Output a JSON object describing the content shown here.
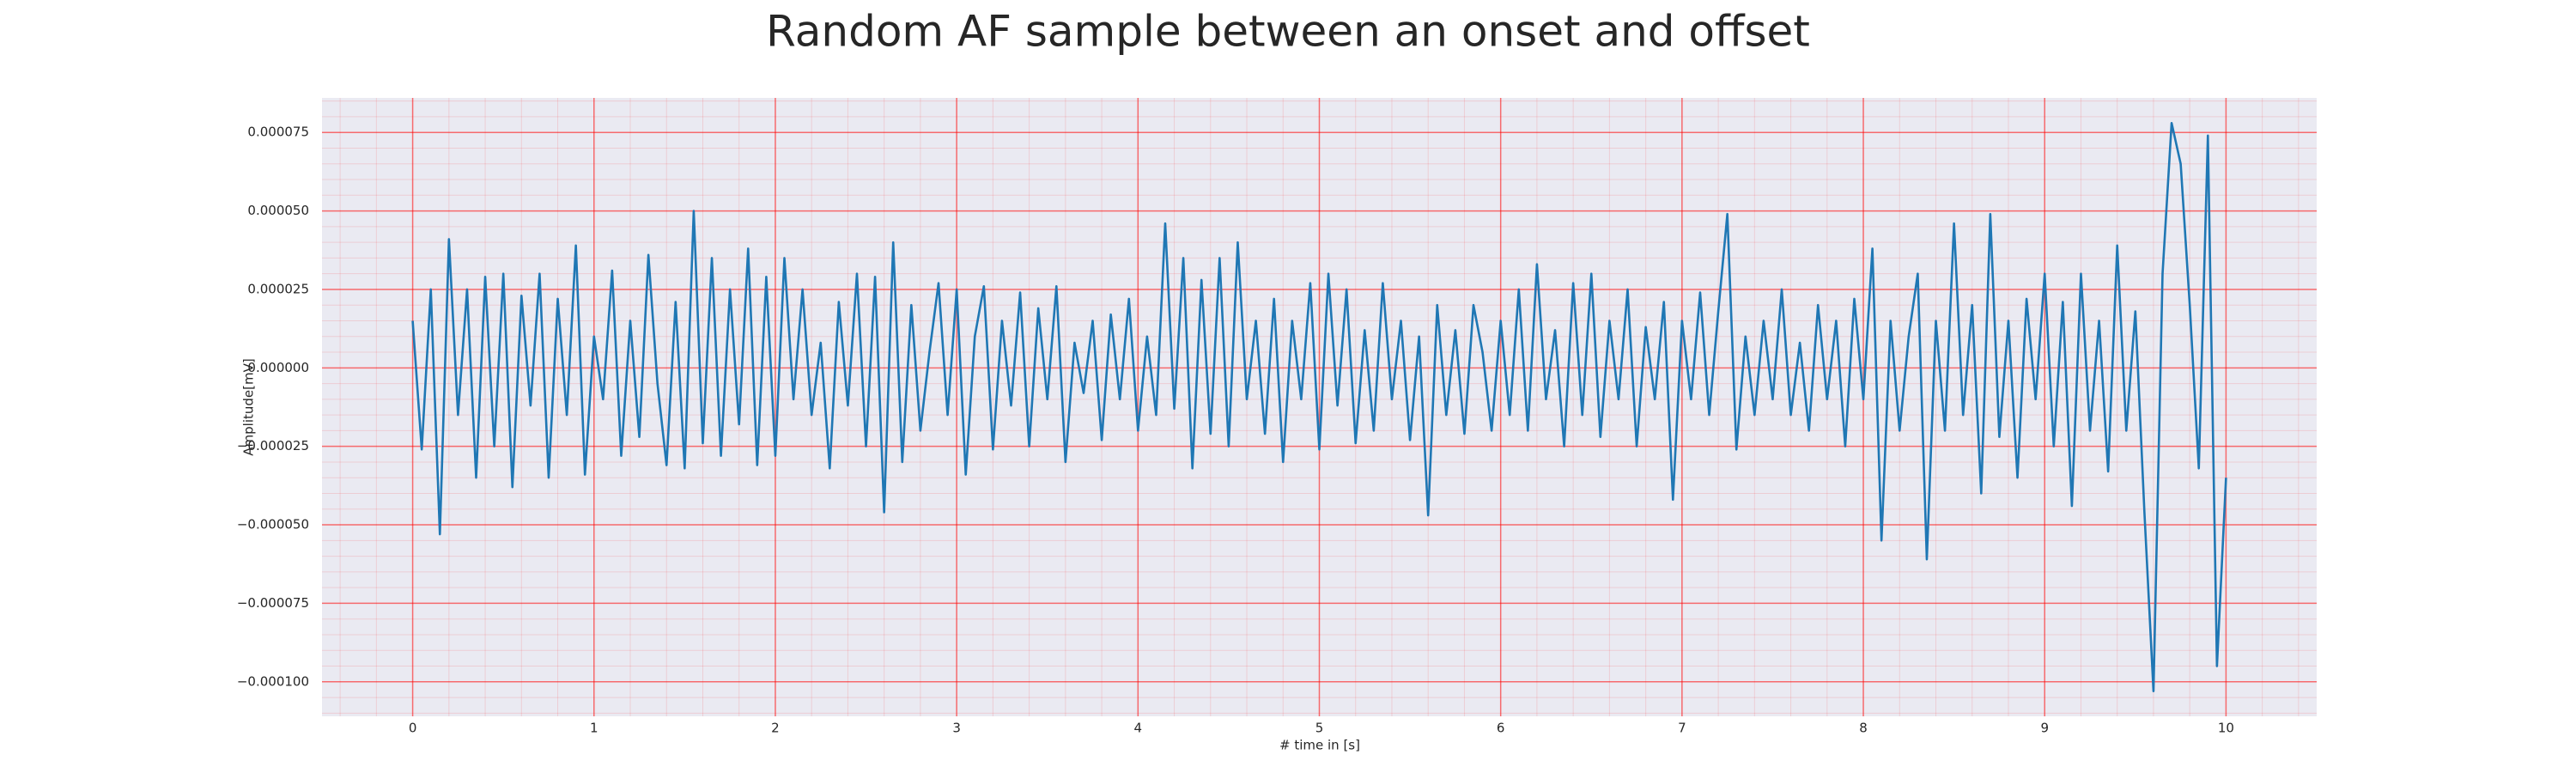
{
  "chart_data": {
    "type": "line",
    "title": "Random AF sample between an onset and offset",
    "xlabel": "# time in [s]",
    "ylabel": "Amplitude[mV]",
    "color": "#1f77b4",
    "grid": true,
    "grid_color": "#ff0000",
    "minor_grid": true,
    "minor_divisions": 5,
    "background": "#eaeaf2",
    "xlim": [
      -0.5,
      10.5
    ],
    "xticks": [
      0,
      1,
      2,
      3,
      4,
      5,
      6,
      7,
      8,
      9,
      10
    ],
    "ylim": [
      -0.000111,
      8.6e-05
    ],
    "yticks": [
      {
        "value": 7.5e-05,
        "label": "0.000075"
      },
      {
        "value": 5e-05,
        "label": "0.000050"
      },
      {
        "value": 2.5e-05,
        "label": "0.000025"
      },
      {
        "value": 0,
        "label": "0.000000"
      },
      {
        "value": -2.5e-05,
        "label": "−0.000025"
      },
      {
        "value": -5e-05,
        "label": "−0.000050"
      },
      {
        "value": -7.5e-05,
        "label": "−0.000075"
      },
      {
        "value": -0.0001,
        "label": "−0.000100"
      }
    ],
    "x": [
      0,
      0.05,
      0.1,
      0.15,
      0.2,
      0.25,
      0.3,
      0.35,
      0.4,
      0.45,
      0.5,
      0.55,
      0.6,
      0.65,
      0.7,
      0.75,
      0.8,
      0.85,
      0.9,
      0.95,
      1,
      1.05,
      1.1,
      1.15,
      1.2,
      1.25,
      1.3,
      1.35,
      1.4,
      1.45,
      1.5,
      1.55,
      1.6,
      1.65,
      1.7,
      1.75,
      1.8,
      1.85,
      1.9,
      1.95,
      2,
      2.05,
      2.1,
      2.15,
      2.2,
      2.25,
      2.3,
      2.35,
      2.4,
      2.45,
      2.5,
      2.55,
      2.6,
      2.65,
      2.7,
      2.75,
      2.8,
      2.85,
      2.9,
      2.95,
      3,
      3.05,
      3.1,
      3.15,
      3.2,
      3.25,
      3.3,
      3.35,
      3.4,
      3.45,
      3.5,
      3.55,
      3.6,
      3.65,
      3.7,
      3.75,
      3.8,
      3.85,
      3.9,
      3.95,
      4,
      4.05,
      4.1,
      4.15,
      4.2,
      4.25,
      4.3,
      4.35,
      4.4,
      4.45,
      4.5,
      4.55,
      4.6,
      4.65,
      4.7,
      4.75,
      4.8,
      4.85,
      4.9,
      4.95,
      5,
      5.05,
      5.1,
      5.15,
      5.2,
      5.25,
      5.3,
      5.35,
      5.4,
      5.45,
      5.5,
      5.55,
      5.6,
      5.65,
      5.7,
      5.75,
      5.8,
      5.85,
      5.9,
      5.95,
      6,
      6.05,
      6.1,
      6.15,
      6.2,
      6.25,
      6.3,
      6.35,
      6.4,
      6.45,
      6.5,
      6.55,
      6.6,
      6.65,
      6.7,
      6.75,
      6.8,
      6.85,
      6.9,
      6.95,
      7,
      7.05,
      7.1,
      7.15,
      7.2,
      7.25,
      7.3,
      7.35,
      7.4,
      7.45,
      7.5,
      7.55,
      7.6,
      7.65,
      7.7,
      7.75,
      7.8,
      7.85,
      7.9,
      7.95,
      8,
      8.05,
      8.1,
      8.15,
      8.2,
      8.25,
      8.3,
      8.35,
      8.4,
      8.45,
      8.5,
      8.55,
      8.6,
      8.65,
      8.7,
      8.75,
      8.8,
      8.85,
      8.9,
      8.95,
      9,
      9.05,
      9.1,
      9.15,
      9.2,
      9.25,
      9.3,
      9.35,
      9.4,
      9.45,
      9.5,
      9.55,
      9.6,
      9.65,
      9.7,
      9.75,
      9.8,
      9.85,
      9.9,
      9.95,
      10
    ],
    "values": [
      1.5e-05,
      -2.6e-05,
      2.5e-05,
      -5.3e-05,
      4.1e-05,
      -1.5e-05,
      2.5e-05,
      -3.5e-05,
      2.9e-05,
      -2.5e-05,
      3e-05,
      -3.8e-05,
      2.3e-05,
      -1.2e-05,
      3e-05,
      -3.5e-05,
      2.2e-05,
      -1.5e-05,
      3.9e-05,
      -3.4e-05,
      1e-05,
      -1e-05,
      3.1e-05,
      -2.8e-05,
      1.5e-05,
      -2.2e-05,
      3.6e-05,
      -5e-06,
      -3.1e-05,
      2.1e-05,
      -3.2e-05,
      5e-05,
      -2.4e-05,
      3.5e-05,
      -2.8e-05,
      2.5e-05,
      -1.8e-05,
      3.8e-05,
      -3.1e-05,
      2.9e-05,
      -2.8e-05,
      3.5e-05,
      -1e-05,
      2.5e-05,
      -1.5e-05,
      8e-06,
      -3.2e-05,
      2.1e-05,
      -1.2e-05,
      3e-05,
      -2.5e-05,
      2.9e-05,
      -4.6e-05,
      4e-05,
      -3e-05,
      2e-05,
      -2e-05,
      5e-06,
      2.7e-05,
      -1.5e-05,
      2.5e-05,
      -3.4e-05,
      1e-05,
      2.6e-05,
      -2.6e-05,
      1.5e-05,
      -1.2e-05,
      2.4e-05,
      -2.5e-05,
      1.9e-05,
      -1e-05,
      2.6e-05,
      -3e-05,
      8e-06,
      -8e-06,
      1.5e-05,
      -2.3e-05,
      1.7e-05,
      -1e-05,
      2.2e-05,
      -2e-05,
      1e-05,
      -1.5e-05,
      4.6e-05,
      -1.3e-05,
      3.5e-05,
      -3.2e-05,
      2.8e-05,
      -2.1e-05,
      3.5e-05,
      -2.5e-05,
      4e-05,
      -1e-05,
      1.5e-05,
      -2.1e-05,
      2.2e-05,
      -3e-05,
      1.5e-05,
      -1e-05,
      2.7e-05,
      -2.6e-05,
      3e-05,
      -1.2e-05,
      2.5e-05,
      -2.4e-05,
      1.2e-05,
      -2e-05,
      2.7e-05,
      -1e-05,
      1.5e-05,
      -2.3e-05,
      1e-05,
      -4.7e-05,
      2e-05,
      -1.5e-05,
      1.2e-05,
      -2.1e-05,
      2e-05,
      5e-06,
      -2e-05,
      1.5e-05,
      -1.5e-05,
      2.5e-05,
      -2e-05,
      3.3e-05,
      -1e-05,
      1.2e-05,
      -2.5e-05,
      2.7e-05,
      -1.5e-05,
      3e-05,
      -2.2e-05,
      1.5e-05,
      -1e-05,
      2.5e-05,
      -2.5e-05,
      1.3e-05,
      -1e-05,
      2.1e-05,
      -4.2e-05,
      1.5e-05,
      -1e-05,
      2.4e-05,
      -1.5e-05,
      1.8e-05,
      4.9e-05,
      -2.6e-05,
      1e-05,
      -1.5e-05,
      1.5e-05,
      -1e-05,
      2.5e-05,
      -1.5e-05,
      8e-06,
      -2e-05,
      2e-05,
      -1e-05,
      1.5e-05,
      -2.5e-05,
      2.2e-05,
      -1e-05,
      3.8e-05,
      -5.5e-05,
      1.5e-05,
      -2e-05,
      1e-05,
      3e-05,
      -6.1e-05,
      1.5e-05,
      -2e-05,
      4.6e-05,
      -1.5e-05,
      2e-05,
      -4e-05,
      4.9e-05,
      -2.2e-05,
      1.5e-05,
      -3.5e-05,
      2.2e-05,
      -1e-05,
      3e-05,
      -2.5e-05,
      2.1e-05,
      -4.4e-05,
      3e-05,
      -2e-05,
      1.5e-05,
      -3.3e-05,
      3.9e-05,
      -2e-05,
      1.8e-05,
      -4.6e-05,
      -0.000103,
      3e-05,
      7.8e-05,
      6.5e-05,
      2e-05,
      -3.2e-05,
      7.4e-05,
      -9.5e-05,
      -3.5e-05
    ]
  }
}
